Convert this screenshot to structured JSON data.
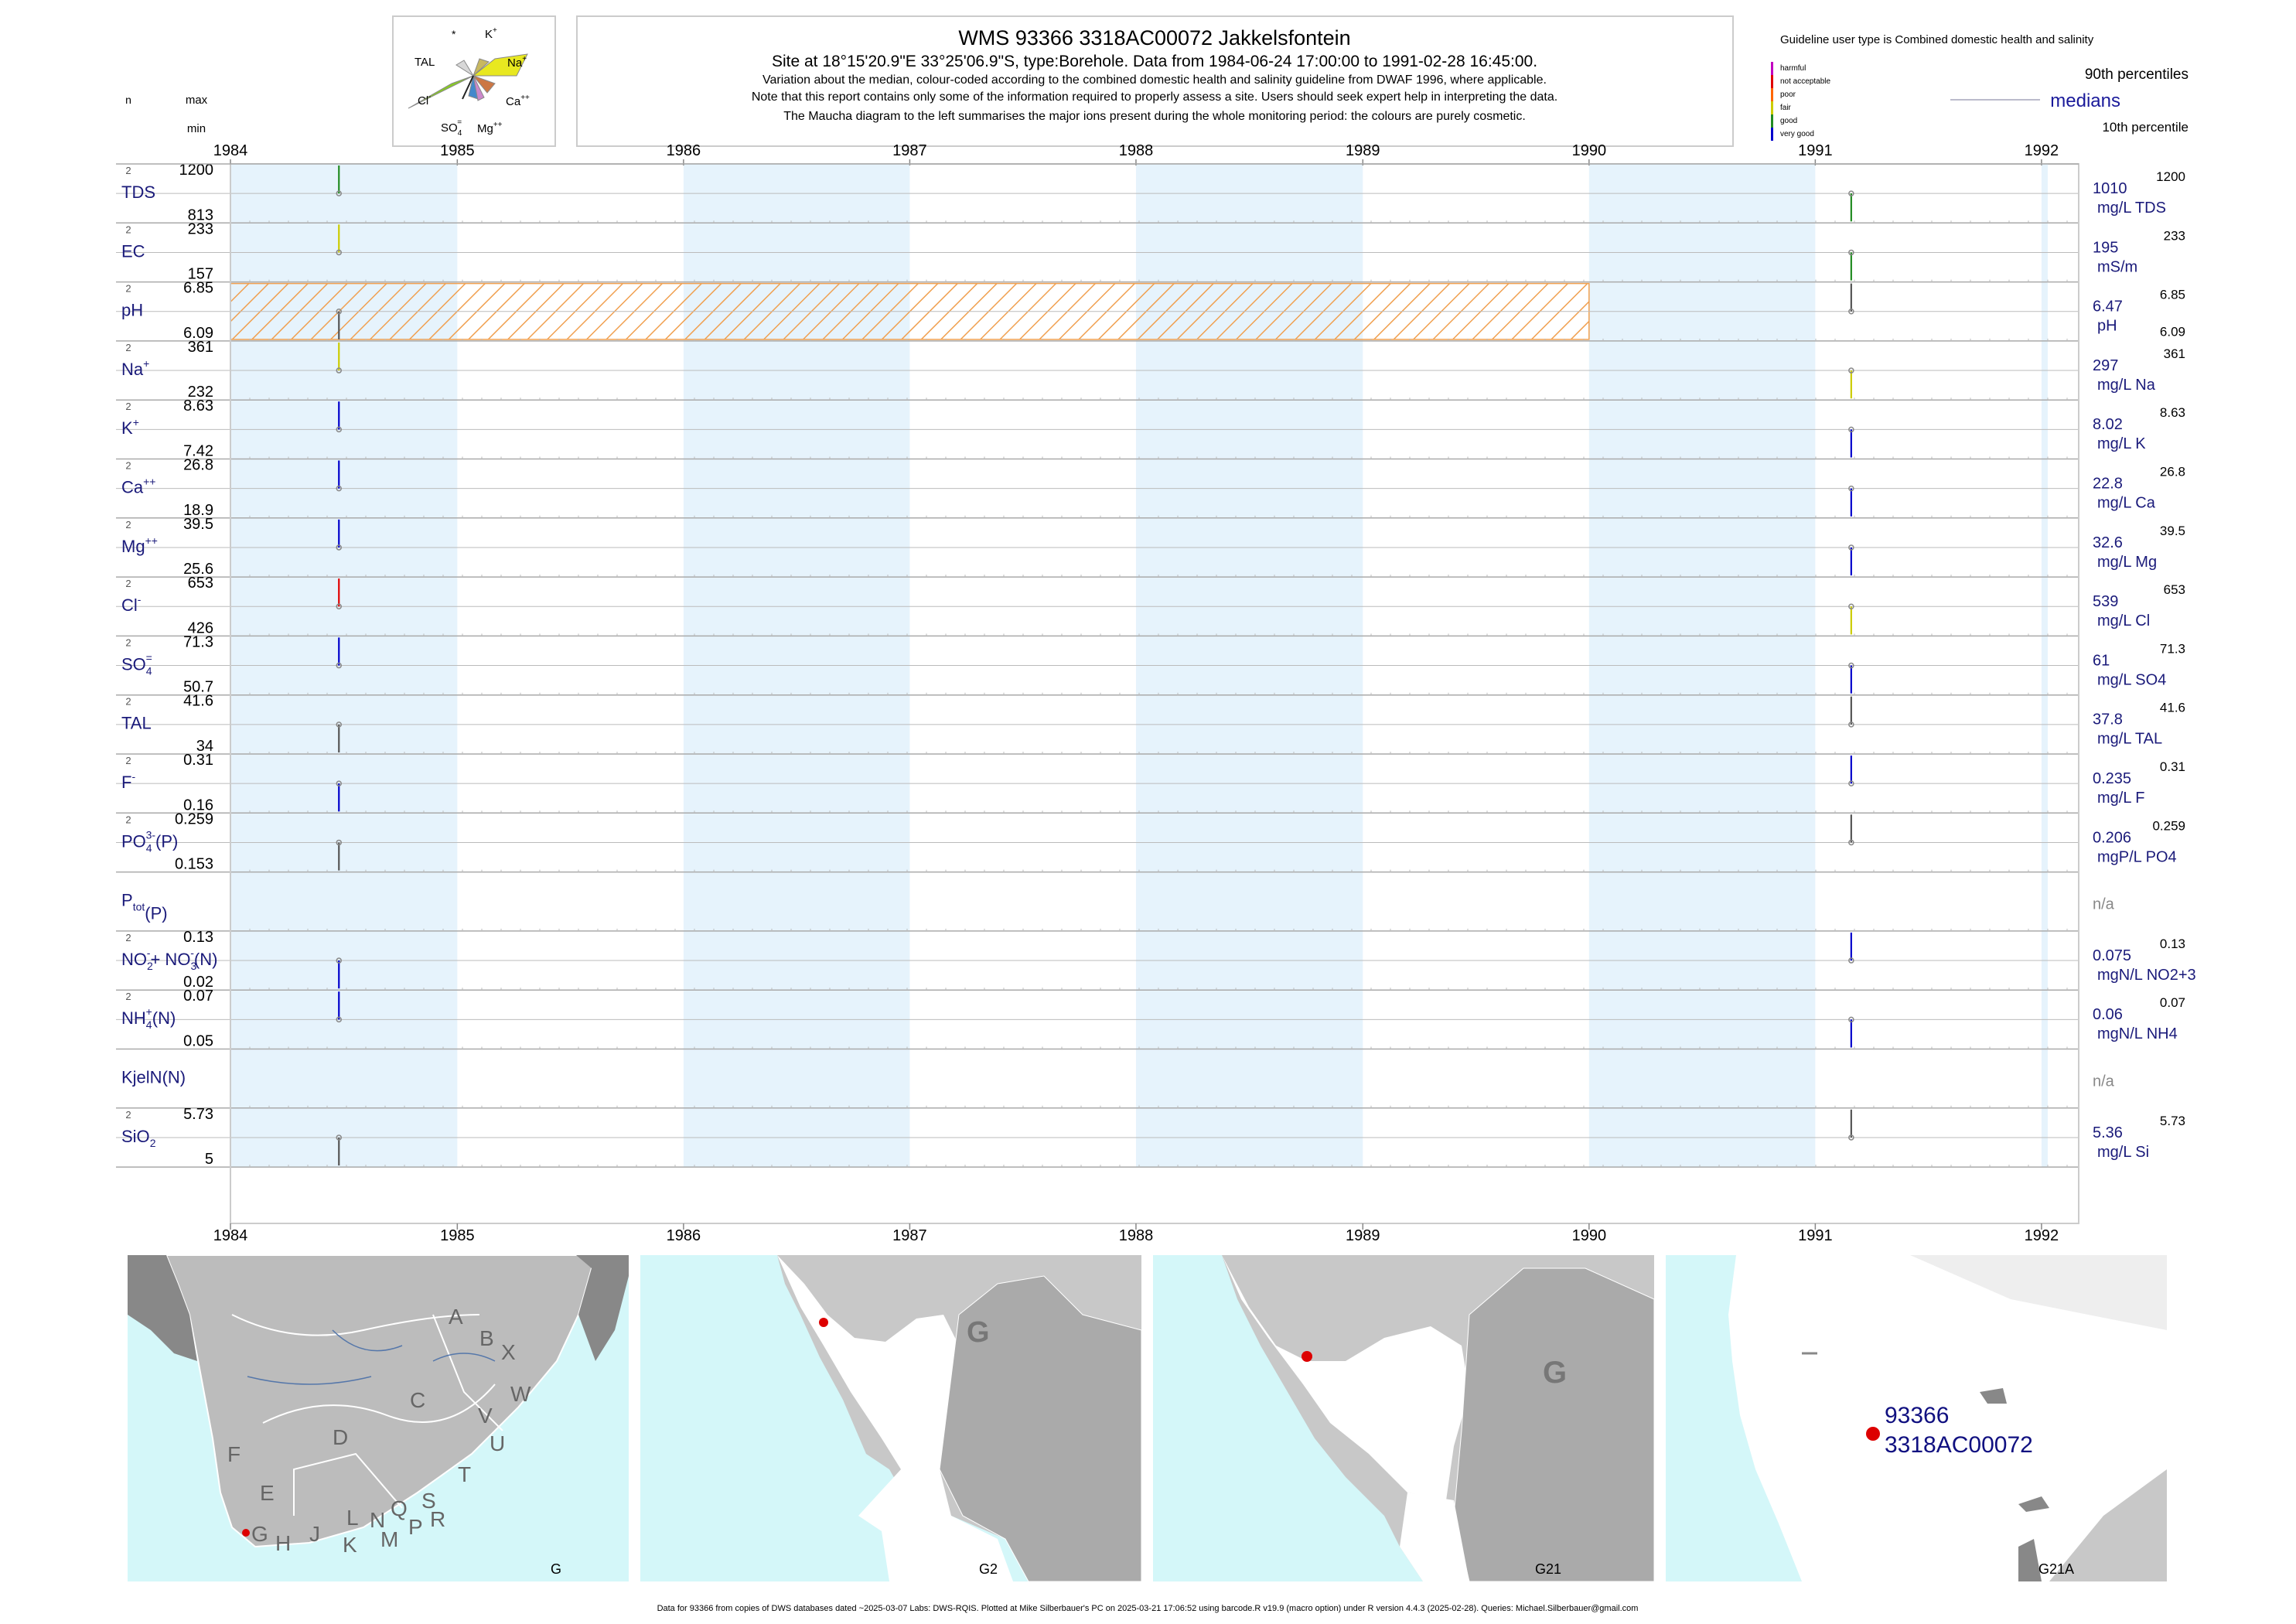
{
  "header": {
    "title": "WMS 93366 3318AC00072 Jakkelsfontein",
    "site_line": "Site at 18°15'20.9\"E 33°25'06.9\"S, type:Borehole.  Data from 1984-06-24 17:00:00 to 1991-02-28 16:45:00.",
    "note_1": "Variation about the median,  colour-coded according to the combined domestic health and salinity guideline from DWAF 1996, where applicable.",
    "note_2": "Note that this report contains only some of the information required to properly assess a site. Users should seek expert help in interpreting the data.",
    "note_3": "The Maucha diagram to the left summarises the major ions present during the whole monitoring period: the colours are purely cosmetic."
  },
  "left_header": {
    "n": "n",
    "max": "max",
    "min": "min"
  },
  "maucha": {
    "labels": {
      "star": "*",
      "k": "K",
      "tal": "TAL",
      "na": "Na",
      "cl": "Cl",
      "ca": "Ca",
      "so4": "SO",
      "mg": "Mg"
    },
    "colors": {
      "na": "#e8e820",
      "cl": "#88cc22",
      "k": "#c8b860",
      "ca": "#cc7744",
      "so4": "#4488cc",
      "mg": "#cc88cc",
      "tal": "#d8d8d8"
    }
  },
  "legend": {
    "guideline_title": "Guideline user type is Combined domestic health and salinity",
    "categories": [
      {
        "label": "harmful",
        "color": "#c000c0"
      },
      {
        "label": "not acceptable",
        "color": "#e00000"
      },
      {
        "label": "poor",
        "color": "#ff6600"
      },
      {
        "label": "fair",
        "color": "#cccc00"
      },
      {
        "label": "good",
        "color": "#228b22"
      },
      {
        "label": "very good",
        "color": "#0000cc"
      }
    ],
    "p90": "90th percentiles",
    "medians": "medians",
    "p10": "10th percentile"
  },
  "chart_data": {
    "type": "strip-timeseries",
    "x_axis_years": [
      "1984",
      "1985",
      "1986",
      "1987",
      "1988",
      "1989",
      "1990",
      "1991",
      "1992"
    ],
    "x_range": [
      "1984-01-01",
      "1992-03-01"
    ],
    "sample_dates": [
      "1984-06-24",
      "1991-02-28"
    ],
    "variables": [
      {
        "id": "tds",
        "label": "TDS",
        "n": "2",
        "max": "1200",
        "min": "813",
        "median": "1010",
        "unit": "mg/L TDS",
        "p90": "1200",
        "p10": "",
        "vmin": 813,
        "vmax": 1200,
        "values": [
          1200,
          813
        ],
        "colors": [
          "#228b22",
          "#228b22"
        ]
      },
      {
        "id": "ec",
        "label": "EC",
        "n": "2",
        "max": "233",
        "min": "157",
        "median": "195",
        "unit": "mS/m",
        "p90": "233",
        "p10": "",
        "vmin": 157,
        "vmax": 233,
        "values": [
          233,
          157
        ],
        "colors": [
          "#cccc00",
          "#228b22"
        ]
      },
      {
        "id": "ph",
        "label": "pH",
        "n": "2",
        "max": "6.85",
        "min": "6.09",
        "median": "6.47",
        "unit": "pH",
        "p90": "6.85",
        "p10": "6.09",
        "vmin": 6.09,
        "vmax": 6.85,
        "values": [
          6.09,
          6.85
        ],
        "colors": [
          "#555555",
          "#555555"
        ],
        "hatched": [
          "1984-01-01",
          "1990-01-01"
        ]
      },
      {
        "id": "na",
        "label": "Na",
        "sup": "+",
        "n": "2",
        "max": "361",
        "min": "232",
        "median": "297",
        "unit": "mg/L Na",
        "p90": "361",
        "p10": "",
        "vmin": 232,
        "vmax": 361,
        "values": [
          361,
          232
        ],
        "colors": [
          "#cccc00",
          "#cccc00"
        ]
      },
      {
        "id": "k",
        "label": "K",
        "sup": "+",
        "n": "2",
        "max": "8.63",
        "min": "7.42",
        "median": "8.02",
        "unit": "mg/L K",
        "p90": "8.63",
        "p10": "",
        "vmin": 7.42,
        "vmax": 8.63,
        "values": [
          8.63,
          7.42
        ],
        "colors": [
          "#0000cc",
          "#0000cc"
        ]
      },
      {
        "id": "ca",
        "label": "Ca",
        "sup": "++",
        "n": "2",
        "max": "26.8",
        "min": "18.9",
        "median": "22.8",
        "unit": "mg/L Ca",
        "p90": "26.8",
        "p10": "",
        "vmin": 18.9,
        "vmax": 26.8,
        "values": [
          26.8,
          18.9
        ],
        "colors": [
          "#0000cc",
          "#0000cc"
        ]
      },
      {
        "id": "mg",
        "label": "Mg",
        "sup": "++",
        "n": "2",
        "max": "39.5",
        "min": "25.6",
        "median": "32.6",
        "unit": "mg/L Mg",
        "p90": "39.5",
        "p10": "",
        "vmin": 25.6,
        "vmax": 39.5,
        "values": [
          39.5,
          25.6
        ],
        "colors": [
          "#0000cc",
          "#0000cc"
        ]
      },
      {
        "id": "cl",
        "label": "Cl",
        "sup": "-",
        "n": "2",
        "max": "653",
        "min": "426",
        "median": "539",
        "unit": "mg/L Cl",
        "p90": "653",
        "p10": "",
        "vmin": 426,
        "vmax": 653,
        "values": [
          653,
          426
        ],
        "colors": [
          "#e00000",
          "#cccc00"
        ]
      },
      {
        "id": "so4",
        "label": "SO",
        "sub": "4",
        "sup": "=",
        "n": "2",
        "max": "71.3",
        "min": "50.7",
        "median": "61",
        "unit": "mg/L SO4",
        "p90": "71.3",
        "p10": "",
        "vmin": 50.7,
        "vmax": 71.3,
        "values": [
          71.3,
          50.7
        ],
        "colors": [
          "#0000cc",
          "#0000cc"
        ]
      },
      {
        "id": "tal",
        "label": "TAL",
        "n": "2",
        "max": "41.6",
        "min": "34",
        "median": "37.8",
        "unit": "mg/L TAL",
        "p90": "41.6",
        "p10": "",
        "vmin": 34,
        "vmax": 41.6,
        "values": [
          34,
          41.6
        ],
        "colors": [
          "#555555",
          "#555555"
        ]
      },
      {
        "id": "f",
        "label": "F",
        "sup": "-",
        "n": "2",
        "max": "0.31",
        "min": "0.16",
        "median": "0.235",
        "unit": "mg/L F",
        "p90": "0.31",
        "p10": "",
        "vmin": 0.16,
        "vmax": 0.31,
        "values": [
          0.16,
          0.31
        ],
        "colors": [
          "#0000cc",
          "#0000cc"
        ]
      },
      {
        "id": "po4",
        "label": "PO",
        "sub": "4",
        "sup": "3-",
        "tail": "(P)",
        "n": "2",
        "max": "0.259",
        "min": "0.153",
        "median": "0.206",
        "unit": "mgP/L PO4",
        "p90": "0.259",
        "p10": "",
        "vmin": 0.153,
        "vmax": 0.259,
        "values": [
          0.153,
          0.259
        ],
        "colors": [
          "#555555",
          "#555555"
        ]
      },
      {
        "id": "ptot",
        "label": "P",
        "sub": "tot",
        "tail": "(P)",
        "n": "",
        "max": "",
        "min": "",
        "median": "n/a",
        "unit": "",
        "p90": "",
        "p10": "",
        "values": []
      },
      {
        "id": "no23",
        "label": "NO",
        "sub": "2",
        "sup": "-",
        "tail": "+ NO",
        "sub2": "3",
        "sup2": "-",
        "tail2": "(N)",
        "n": "2",
        "max": "0.13",
        "min": "0.02",
        "median": "0.075",
        "unit": "mgN/L NO2+3",
        "p90": "0.13",
        "p10": "",
        "vmin": 0.02,
        "vmax": 0.13,
        "values": [
          0.02,
          0.13
        ],
        "colors": [
          "#0000cc",
          "#0000cc"
        ]
      },
      {
        "id": "nh4",
        "label": "NH",
        "sub": "4",
        "sup": "+",
        "tail": "(N)",
        "n": "2",
        "max": "0.07",
        "min": "0.05",
        "median": "0.06",
        "unit": "mgN/L NH4",
        "p90": "0.07",
        "p10": "",
        "vmin": 0.05,
        "vmax": 0.07,
        "values": [
          0.07,
          0.05
        ],
        "colors": [
          "#0000cc",
          "#0000cc"
        ]
      },
      {
        "id": "kjeln",
        "label": "KjelN(N)",
        "n": "",
        "max": "",
        "min": "",
        "median": "n/a",
        "unit": "",
        "p90": "",
        "p10": "",
        "values": []
      },
      {
        "id": "sio2",
        "label": "SiO",
        "sub": "2",
        "n": "2",
        "max": "5.73",
        "min": "5",
        "median": "5.36",
        "unit": "mg/L Si",
        "p90": "5.73",
        "p10": "",
        "vmin": 5,
        "vmax": 5.73,
        "values": [
          5,
          5.73
        ],
        "colors": [
          "#555555",
          "#555555"
        ]
      }
    ]
  },
  "maps": {
    "m1": {
      "label": "G",
      "letters": [
        "A",
        "B",
        "X",
        "W",
        "C",
        "V",
        "U",
        "D",
        "T",
        "F",
        "E",
        "G",
        "H",
        "J",
        "K",
        "L",
        "N",
        "M",
        "Q",
        "P",
        "S",
        "R"
      ]
    },
    "m2": {
      "label": "G2",
      "region": "G"
    },
    "m3": {
      "label": "G21",
      "region": "G"
    },
    "m4": {
      "label": "G21A",
      "site_1": "93366",
      "site_2": "3318AC00072"
    }
  },
  "footer": "Data for 93366 from copies of DWS databases dated ~2025-03-07 Labs: DWS-RQIS. Plotted at Mike Silberbauer's PC on 2025-03-21 17:06:52 using barcode.R v19.9 (macro option) under R version 4.4.3 (2025-02-28). Queries: Michael.Silberbauer@gmail.com"
}
